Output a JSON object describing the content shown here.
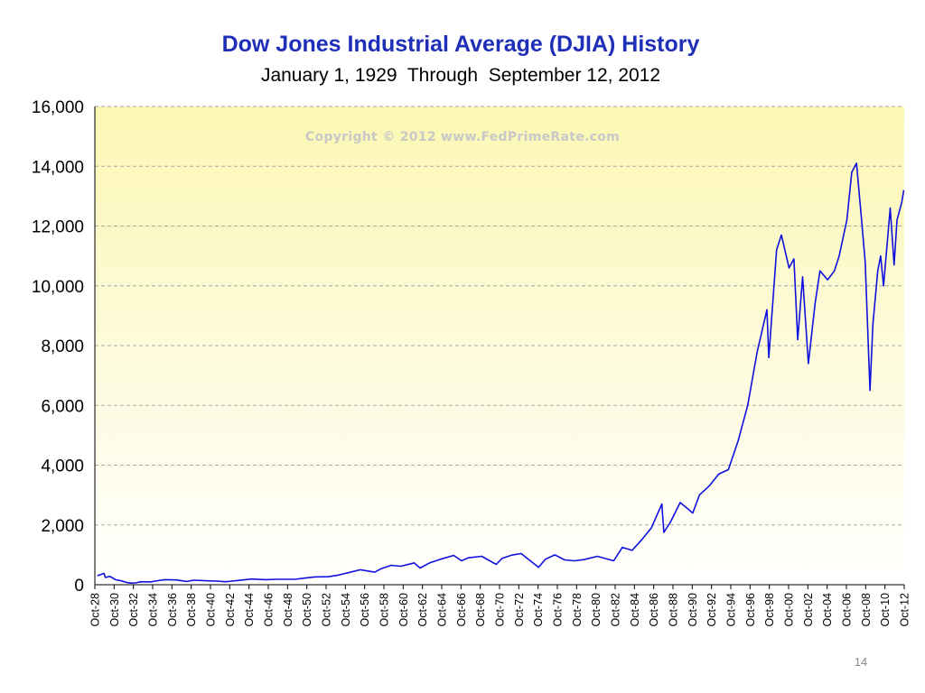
{
  "page_number": "14",
  "copyright": "Copyright © 2012 www.FedPrimeRate.com",
  "colors": {
    "line": "#1010e0",
    "title": "#1f2fb8",
    "plot_top": "#fbf7b4",
    "plot_bottom": "#ffffff",
    "grid": "#a8a8a8"
  },
  "chart_data": {
    "type": "line",
    "title": "Dow Jones Industrial Average (DJIA) History",
    "subtitle": "January 1, 1929  Through  September 12, 2012",
    "xlabel": "",
    "ylabel": "",
    "ylim": [
      0,
      16000
    ],
    "xlim": [
      1928.75,
      2012.75
    ],
    "yticks": [
      0,
      2000,
      4000,
      6000,
      8000,
      10000,
      12000,
      14000,
      16000
    ],
    "ytick_labels": [
      "0",
      "2,000",
      "4,000",
      "6,000",
      "8,000",
      "10,000",
      "12,000",
      "14,000",
      "16,000"
    ],
    "xtick_labels": [
      "Oct-28",
      "Oct-30",
      "Oct-32",
      "Oct-34",
      "Oct-36",
      "Oct-38",
      "Oct-40",
      "Oct-42",
      "Oct-44",
      "Oct-46",
      "Oct-48",
      "Oct-50",
      "Oct-52",
      "Oct-54",
      "Oct-56",
      "Oct-58",
      "Oct-60",
      "Oct-62",
      "Oct-64",
      "Oct-66",
      "Oct-68",
      "Oct-70",
      "Oct-72",
      "Oct-74",
      "Oct-76",
      "Oct-78",
      "Oct-80",
      "Oct-82",
      "Oct-84",
      "Oct-86",
      "Oct-88",
      "Oct-90",
      "Oct-92",
      "Oct-94",
      "Oct-96",
      "Oct-98",
      "Oct-00",
      "Oct-02",
      "Oct-04",
      "Oct-06",
      "Oct-08",
      "Oct-10",
      "Oct-12"
    ],
    "grid": "horizontal dashed",
    "legend": "none",
    "series": [
      {
        "x": [
          1929.0,
          1929.7,
          1929.85,
          1930.3,
          1930.9,
          1931.5,
          1932.0,
          1932.5,
          1933.0,
          1933.5,
          1934.5,
          1935.0,
          1936.0,
          1937.2,
          1938.3,
          1939.0,
          1940.5,
          1941.5,
          1942.3,
          1943.5,
          1945.0,
          1946.5,
          1947.5,
          1949.5,
          1950.5,
          1951.5,
          1953.0,
          1954.0,
          1955.0,
          1956.3,
          1957.8,
          1958.5,
          1959.5,
          1960.5,
          1961.9,
          1962.5,
          1963.5,
          1964.5,
          1966.0,
          1966.8,
          1967.5,
          1968.9,
          1970.4,
          1971.0,
          1972.0,
          1973.0,
          1974.8,
          1975.5,
          1976.5,
          1977.5,
          1978.5,
          1979.5,
          1980.9,
          1982.6,
          1983.5,
          1984.5,
          1985.5,
          1986.5,
          1987.6,
          1987.8,
          1988.5,
          1989.5,
          1990.8,
          1991.5,
          1992.5,
          1993.5,
          1994.5,
          1995.5,
          1996.5,
          1997.5,
          1998.5,
          1998.7,
          1999.5,
          2000.0,
          2000.8,
          2001.3,
          2001.7,
          2002.2,
          2002.8,
          2003.5,
          2004.0,
          2004.8,
          2005.5,
          2006.0,
          2006.8,
          2007.3,
          2007.8,
          2008.3,
          2008.7,
          2009.2,
          2009.5,
          2010.0,
          2010.3,
          2010.6,
          2011.3,
          2011.7,
          2012.0,
          2012.5,
          2012.7
        ],
        "values": [
          300,
          380,
          240,
          280,
          170,
          130,
          80,
          55,
          60,
          100,
          95,
          120,
          170,
          160,
          110,
          150,
          130,
          120,
          100,
          140,
          190,
          170,
          180,
          180,
          220,
          260,
          270,
          320,
          400,
          500,
          420,
          540,
          650,
          620,
          730,
          560,
          730,
          840,
          980,
          800,
          900,
          950,
          680,
          880,
          990,
          1040,
          580,
          850,
          1000,
          830,
          800,
          840,
          950,
          800,
          1250,
          1150,
          1500,
          1900,
          2700,
          1750,
          2100,
          2750,
          2400,
          3000,
          3300,
          3700,
          3850,
          4800,
          6000,
          7800,
          9200,
          7600,
          11200,
          11700,
          10600,
          10900,
          8200,
          10300,
          7400,
          9400,
          10500,
          10200,
          10500,
          11000,
          12200,
          13800,
          14100,
          12300,
          10800,
          6500,
          8700,
          10500,
          11000,
          10000,
          12600,
          10700,
          12200,
          12800,
          13200
        ]
      }
    ]
  }
}
